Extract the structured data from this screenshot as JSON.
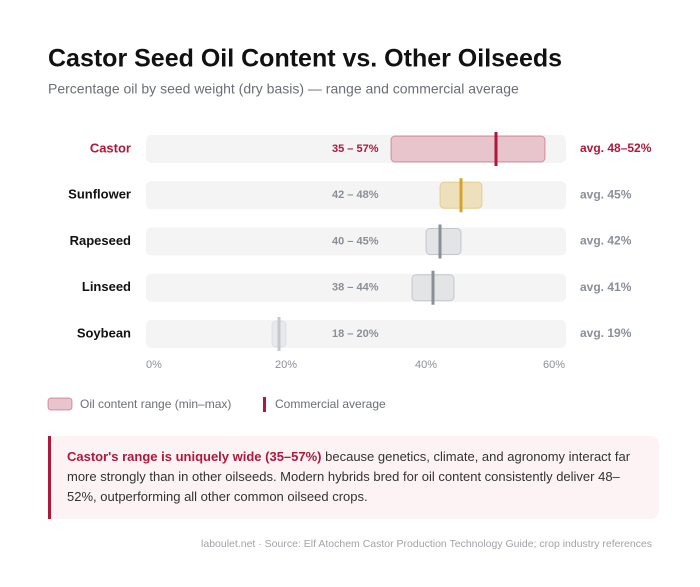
{
  "chart_data": {
    "type": "range",
    "title": "Castor Seed Oil Content vs. Other Oilseeds",
    "subtitle": "Percentage oil by seed weight (dry basis) — range and commercial average",
    "categories": [
      "Castor",
      "Sunflower",
      "Rapeseed",
      "Linseed",
      "Soybean"
    ],
    "label_colors": [
      "#b0173a",
      "#111111",
      "#111111",
      "#111111",
      "#111111"
    ],
    "series": [
      {
        "name": "Oil content range (min–max)",
        "color": "#e8c4cc",
        "colors": [
          "#e8c4cc",
          "#efe0bd",
          "#e3e4e6",
          "#e3e4e6",
          "#e8e9eb"
        ],
        "low": [
          35,
          42,
          40,
          38,
          18
        ],
        "high": [
          57,
          48,
          45,
          44,
          20
        ],
        "value_labels": [
          "35 – 57%",
          "42 – 48%",
          "40 – 45%",
          "38 – 44%",
          "18 – 20%"
        ]
      },
      {
        "name": "Commercial average",
        "color": "#b0173a",
        "colors": [
          "#b0173a",
          "#d4a32a",
          "#8a8f98",
          "#8a8f98",
          "#c5c8cc"
        ],
        "low": [
          48,
          45,
          42,
          41,
          19
        ],
        "high": [
          52,
          45,
          42,
          41,
          19
        ],
        "value_labels": [
          "avg. 48–52%",
          "avg. 45%",
          "avg. 42%",
          "avg. 41%",
          "avg. 19%"
        ]
      }
    ],
    "xlim": [
      0,
      60
    ],
    "xticks": [
      {
        "value": 0,
        "label": "0%"
      },
      {
        "value": 20,
        "label": "20%"
      },
      {
        "value": 40,
        "label": "40%"
      },
      {
        "value": 60,
        "label": "60%"
      }
    ]
  },
  "callout": {
    "lead": "Castor's range is uniquely wide (35–57%)",
    "text": " because genetics, climate, and agronomy interact far more strongly than in other oilseeds. Modern hybrids bred for oil content consistently deliver 48–52%, outperforming all other common oilseed crops."
  },
  "source": "laboulet.net · Source: Elf Atochem Castor Production Technology Guide; crop industry references"
}
